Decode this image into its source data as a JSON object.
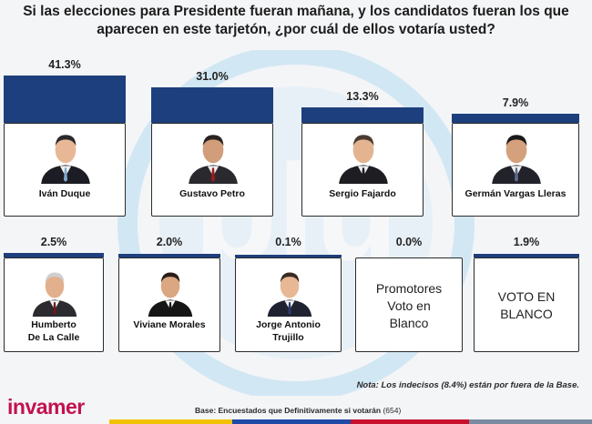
{
  "title": "Si las elecciones para Presidente fueran mañana, y los candidatos fueran los que aparecen en este tarjetón, ¿por cuál de ellos votaría usted?",
  "watermark": {
    "text": "blu radio"
  },
  "chart_data": {
    "type": "bar",
    "title": "Si las elecciones para Presidente fueran mañana, y los candidatos fueran los que aparecen en este tarjetón, ¿por cuál de ellos votaría usted?",
    "categories": [
      "Iván Duque",
      "Gustavo Petro",
      "Sergio Fajardo",
      "Germán Vargas Lleras",
      "Humberto De La Calle",
      "Viviane Morales",
      "Jorge Antonio Trujillo",
      "Promotores Voto en Blanco",
      "VOTO EN BLANCO"
    ],
    "values": [
      41.3,
      31.0,
      13.3,
      7.9,
      2.5,
      2.0,
      0.1,
      0.0,
      1.9
    ],
    "value_labels": [
      "41.3%",
      "31.0%",
      "13.3%",
      "7.9%",
      "2.5%",
      "2.0%",
      "0.1%",
      "0.0%",
      "1.9%"
    ],
    "unit": "%",
    "bar_color": "#1e3f7d"
  },
  "cards": [
    {
      "line1": "Iván Duque",
      "line2": "",
      "photo": true
    },
    {
      "line1": "Gustavo Petro",
      "line2": "",
      "photo": true
    },
    {
      "line1": "Sergio Fajardo",
      "line2": "",
      "photo": true
    },
    {
      "line1": "Germán Vargas Lleras",
      "line2": "",
      "photo": true
    },
    {
      "line1": "Humberto",
      "line2": "De La Calle",
      "photo": true
    },
    {
      "line1": "Viviane Morales",
      "line2": "",
      "photo": true
    },
    {
      "line1": "Jorge Antonio",
      "line2": "Trujillo",
      "photo": true
    },
    {
      "line1": "Promotores",
      "line2": "Voto en",
      "line3": "Blanco",
      "photo": false
    },
    {
      "line1": "VOTO EN",
      "line2": "BLANCO",
      "photo": false
    }
  ],
  "note": "Nota: Los indecisos (8.4%) están por fuera de la Base.",
  "base": {
    "label": "Base: Encuestados que Definitivamente si votarán",
    "n": "(654)"
  },
  "logo": "invamer",
  "stripe_colors": [
    "#f2c200",
    "#1f4aa8",
    "#c8102e",
    "#7a8aa0"
  ]
}
